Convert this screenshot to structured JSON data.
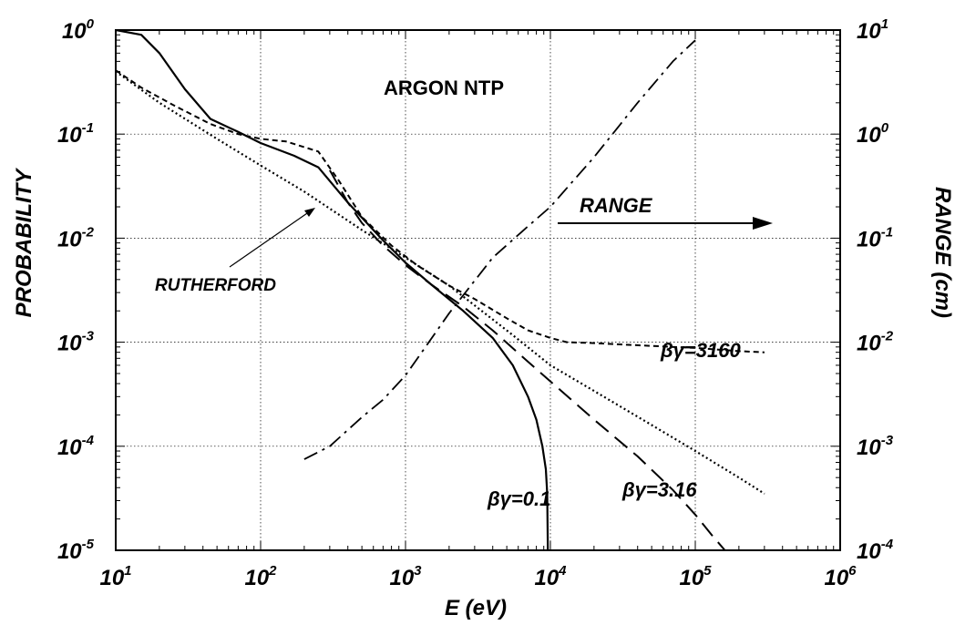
{
  "chart_data": {
    "type": "line",
    "title": "ARGON NTP",
    "xlabel": "E (eV)",
    "ylabel": "PROBABILITY",
    "y2label": "RANGE (cm)",
    "xscale": "log",
    "yscale": "log",
    "y2scale": "log",
    "xlim": [
      10,
      1000000
    ],
    "ylim": [
      1e-05,
      1
    ],
    "y2lim": [
      0.0001,
      10
    ],
    "grid": true,
    "x_ticks": [
      {
        "base": "10",
        "exp": "1"
      },
      {
        "base": "10",
        "exp": "2"
      },
      {
        "base": "10",
        "exp": "3"
      },
      {
        "base": "10",
        "exp": "4"
      },
      {
        "base": "10",
        "exp": "5"
      },
      {
        "base": "10",
        "exp": "6"
      }
    ],
    "y_ticks": [
      {
        "base": "10",
        "exp": "-5"
      },
      {
        "base": "10",
        "exp": "-4"
      },
      {
        "base": "10",
        "exp": "-3"
      },
      {
        "base": "10",
        "exp": "-2"
      },
      {
        "base": "10",
        "exp": "-1"
      },
      {
        "base": "10",
        "exp": "0"
      }
    ],
    "y2_ticks": [
      {
        "base": "10",
        "exp": "-4"
      },
      {
        "base": "10",
        "exp": "-3"
      },
      {
        "base": "10",
        "exp": "-2"
      },
      {
        "base": "10",
        "exp": "-1"
      },
      {
        "base": "10",
        "exp": "0"
      },
      {
        "base": "10",
        "exp": "1"
      }
    ],
    "series": [
      {
        "name": "βγ=0.1",
        "style": "solid",
        "axis": "left",
        "x": [
          10,
          15,
          20,
          30,
          45,
          70,
          100,
          170,
          250,
          400,
          700,
          1000,
          1500,
          2500,
          4000,
          5500,
          7000,
          8000,
          8800,
          9300,
          9500,
          9600
        ],
        "y": [
          1.0,
          0.9,
          0.6,
          0.27,
          0.14,
          0.105,
          0.082,
          0.062,
          0.048,
          0.022,
          0.0095,
          0.0058,
          0.0036,
          0.002,
          0.0011,
          0.0006,
          0.0003,
          0.00018,
          0.0001,
          6e-05,
          3.5e-05,
          1e-05
        ]
      },
      {
        "name": "βγ=3.16",
        "style": "dashed",
        "axis": "left",
        "x": [
          300,
          400,
          500,
          700,
          1000,
          1500,
          2500,
          4000,
          7000,
          10000,
          20000,
          40000,
          70000,
          100000,
          130000,
          160000
        ],
        "y": [
          0.045,
          0.022,
          0.014,
          0.0085,
          0.0055,
          0.0036,
          0.0022,
          0.0013,
          0.00065,
          0.00042,
          0.00018,
          8e-05,
          3.8e-05,
          2.2e-05,
          1.4e-05,
          1e-05
        ]
      },
      {
        "name": "βγ=3160",
        "style": "short-dashed",
        "axis": "left",
        "x": [
          10,
          15,
          25,
          45,
          70,
          100,
          150,
          250,
          350,
          500,
          800,
          1200,
          2000,
          3000,
          5000,
          7000,
          10000,
          13000,
          20000,
          50000,
          100000,
          200000,
          300000
        ],
        "y": [
          0.41,
          0.28,
          0.19,
          0.125,
          0.1,
          0.09,
          0.085,
          0.068,
          0.035,
          0.016,
          0.0085,
          0.0055,
          0.0035,
          0.0026,
          0.0017,
          0.0013,
          0.0011,
          0.001,
          0.00098,
          0.00092,
          0.00088,
          0.00082,
          0.0008
        ]
      },
      {
        "name": "RUTHERFORD",
        "style": "dotted",
        "axis": "left",
        "x": [
          10,
          20,
          50,
          100,
          200,
          500,
          1000,
          2000,
          5000,
          10000,
          20000,
          50000,
          100000,
          200000,
          300000
        ],
        "y": [
          0.4,
          0.2,
          0.09,
          0.05,
          0.028,
          0.012,
          0.0065,
          0.0035,
          0.0013,
          0.0006,
          0.00034,
          0.00016,
          9e-05,
          5e-05,
          3.5e-05
        ]
      },
      {
        "name": "RANGE",
        "style": "dash-dot",
        "axis": "right",
        "x": [
          200,
          300,
          500,
          700,
          1000,
          2000,
          4000,
          7000,
          10000,
          20000,
          40000,
          70000,
          100000
        ],
        "y": [
          0.00075,
          0.001,
          0.0019,
          0.0028,
          0.0048,
          0.019,
          0.065,
          0.13,
          0.2,
          0.6,
          2.0,
          5.0,
          8.0
        ]
      }
    ],
    "annotations": {
      "title": "ARGON NTP",
      "rutherford": "RUTHERFORD",
      "range": "RANGE",
      "bg_3160": "βγ=3160",
      "bg_316": "βγ=3.16",
      "bg_01": "βγ=0.1"
    }
  }
}
